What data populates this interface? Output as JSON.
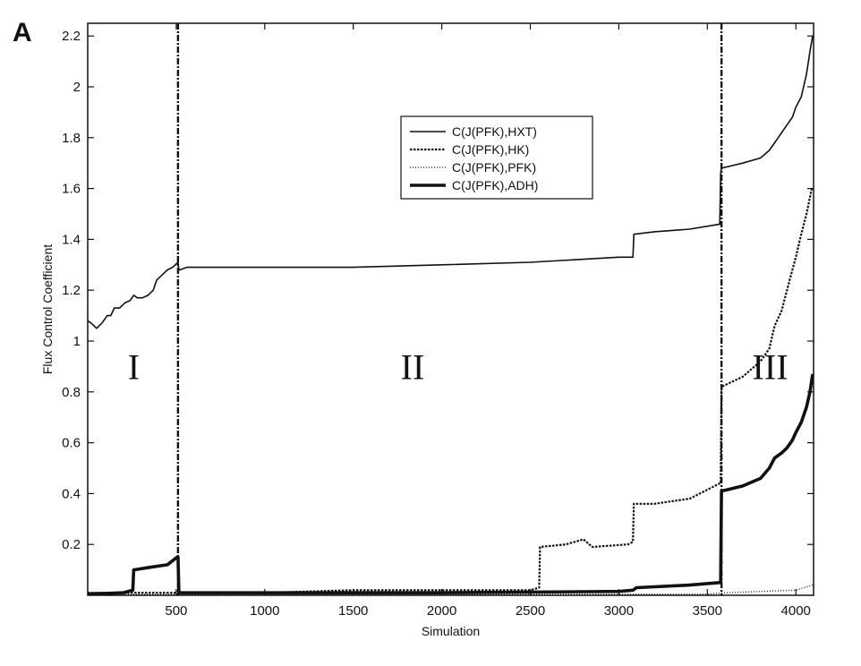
{
  "panel_label": "A",
  "chart_data": {
    "type": "line",
    "xlabel": "Simulation",
    "ylabel": "Flux Control Coefficient",
    "xlim": [
      0,
      4100
    ],
    "ylim": [
      0,
      2.25
    ],
    "xticks": [
      500,
      1000,
      1500,
      2000,
      2500,
      3000,
      3500,
      4000
    ],
    "yticks": [
      0.2,
      0.4,
      0.6,
      0.8,
      1,
      1.2,
      1.4,
      1.6,
      1.8,
      2,
      2.2
    ],
    "region_boundaries": [
      510,
      3580
    ],
    "regions": [
      {
        "label": "I",
        "x": 260,
        "y": 0.85
      },
      {
        "label": "II",
        "x": 1835,
        "y": 0.85
      },
      {
        "label": "III",
        "x": 3855,
        "y": 0.85
      }
    ],
    "legend_position": "top-center",
    "series": [
      {
        "name": "C(J(PFK),HXT)",
        "style": "solid",
        "x": [
          0,
          20,
          50,
          80,
          110,
          130,
          150,
          180,
          210,
          240,
          260,
          280,
          310,
          340,
          370,
          390,
          420,
          450,
          480,
          510,
          515,
          520,
          560,
          700,
          1000,
          1500,
          2000,
          2500,
          3000,
          3080,
          3085,
          3200,
          3400,
          3570,
          3575,
          3580,
          3700,
          3800,
          3850,
          3880,
          3920,
          3950,
          3980,
          4000,
          4030,
          4060,
          4080,
          4095
        ],
        "y": [
          1.08,
          1.07,
          1.05,
          1.07,
          1.1,
          1.1,
          1.13,
          1.13,
          1.15,
          1.16,
          1.18,
          1.17,
          1.17,
          1.18,
          1.2,
          1.24,
          1.26,
          1.28,
          1.29,
          1.31,
          1.28,
          1.28,
          1.29,
          1.29,
          1.29,
          1.29,
          1.3,
          1.31,
          1.33,
          1.33,
          1.42,
          1.43,
          1.44,
          1.46,
          1.66,
          1.68,
          1.7,
          1.72,
          1.75,
          1.78,
          1.82,
          1.85,
          1.88,
          1.92,
          1.96,
          2.05,
          2.14,
          2.2
        ]
      },
      {
        "name": "C(J(PFK),HK)",
        "style": "dashed",
        "x": [
          0,
          520,
          1000,
          1500,
          2000,
          2500,
          2550,
          2555,
          2700,
          2800,
          2850,
          3050,
          3080,
          3085,
          3200,
          3400,
          3570,
          3575,
          3580,
          3700,
          3800,
          3850,
          3880,
          3920,
          3950,
          3980,
          4000,
          4030,
          4060,
          4090
        ],
        "y": [
          0.01,
          0.01,
          0.01,
          0.02,
          0.02,
          0.02,
          0.03,
          0.19,
          0.2,
          0.22,
          0.19,
          0.2,
          0.21,
          0.36,
          0.36,
          0.38,
          0.44,
          0.44,
          0.82,
          0.86,
          0.92,
          0.97,
          1.06,
          1.12,
          1.2,
          1.28,
          1.33,
          1.42,
          1.5,
          1.6
        ]
      },
      {
        "name": "C(J(PFK),PFK)",
        "style": "dotted",
        "x": [
          0,
          500,
          1000,
          1500,
          2000,
          2500,
          3000,
          3500,
          3600,
          3800,
          4000,
          4095
        ],
        "y": [
          0.004,
          0.004,
          0.004,
          0.004,
          0.004,
          0.004,
          0.004,
          0.004,
          0.01,
          0.015,
          0.02,
          0.04
        ]
      },
      {
        "name": "C(J(PFK),ADH)",
        "style": "thick",
        "x": [
          0,
          200,
          255,
          260,
          350,
          450,
          505,
          510,
          515,
          1000,
          2000,
          3000,
          3080,
          3100,
          3400,
          3570,
          3575,
          3580,
          3700,
          3800,
          3850,
          3880,
          3920,
          3950,
          3980,
          4000,
          4030,
          4060,
          4080,
          4095
        ],
        "y": [
          0.005,
          0.01,
          0.02,
          0.1,
          0.11,
          0.12,
          0.15,
          0.15,
          0.01,
          0.01,
          0.01,
          0.015,
          0.02,
          0.03,
          0.04,
          0.05,
          0.05,
          0.41,
          0.43,
          0.46,
          0.5,
          0.54,
          0.56,
          0.58,
          0.61,
          0.64,
          0.68,
          0.74,
          0.8,
          0.87
        ]
      }
    ]
  }
}
